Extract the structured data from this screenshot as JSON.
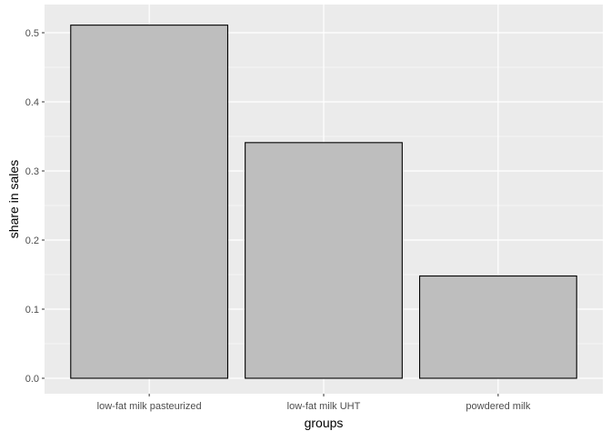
{
  "chart_data": {
    "type": "bar",
    "categories": [
      "low-fat milk pasteurized",
      "low-fat milk UHT",
      "powdered milk"
    ],
    "values": [
      0.511,
      0.341,
      0.148
    ],
    "xlabel": "groups",
    "ylabel": "share in sales",
    "yticks": [
      "0.0",
      "0.1",
      "0.2",
      "0.3",
      "0.4",
      "0.5"
    ],
    "ytick_values": [
      0,
      0.1,
      0.2,
      0.3,
      0.4,
      0.5
    ],
    "grid": true,
    "colors": {
      "panel": "#EBEBEB",
      "grid": "#FFFFFF",
      "bar_fill": "#BEBEBE",
      "bar_outline": "#000000",
      "tick_text": "#4D4D4D"
    }
  }
}
